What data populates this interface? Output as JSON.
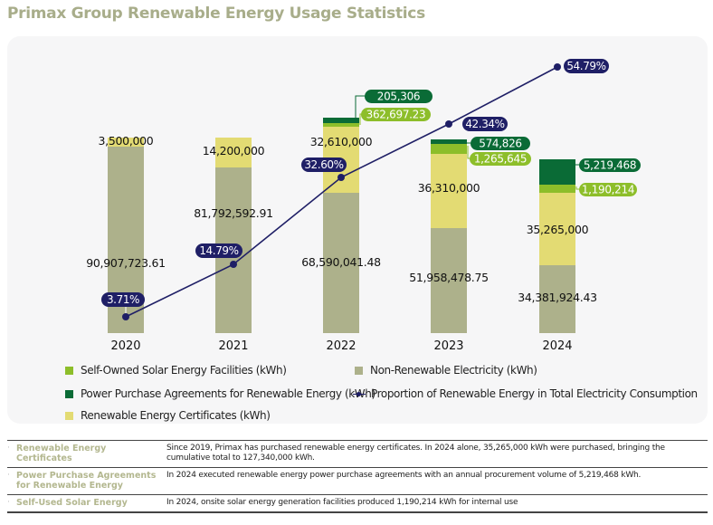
{
  "title": "Primax Group Renewable Energy Usage Statistics",
  "colors": {
    "self_owned_solar": "#8dbe2a",
    "ppa": "#0a6b36",
    "rec": "#e3db73",
    "non_renewable": "#adb18b",
    "proportion_line": "#1f1f66",
    "title": "#a8ad8a"
  },
  "chart_data": {
    "type": "bar",
    "stacked": true,
    "title": "Primax Group Renewable Energy Usage Statistics",
    "xlabel": "",
    "ylabel": "",
    "categories": [
      "2020",
      "2021",
      "2022",
      "2023",
      "2024"
    ],
    "series": [
      {
        "name": "Non-Renewable Electricity (kWh)",
        "key": "non_renewable",
        "values": [
          90907723.61,
          81792592.91,
          68590041.48,
          51958478.75,
          34381924.43
        ],
        "labels": [
          "90,907,723.61",
          "81,792,592.91",
          "68,590,041.48",
          "51,958,478.75",
          "34,381,924.43"
        ]
      },
      {
        "name": "Renewable Energy Certificates (kWh)",
        "key": "rec",
        "values": [
          3500000,
          14200000,
          32610000,
          36310000,
          35265000
        ],
        "labels": [
          "3,500,000",
          "14,200,000",
          "32,610,000",
          "36,310,000",
          "35,265,000"
        ]
      },
      {
        "name": "Self-Owned Solar Energy Facilities (kWh)",
        "key": "self_owned_solar",
        "values": [
          0,
          0,
          362697.23,
          1265645,
          1190214
        ],
        "labels": [
          "",
          "",
          "362,697.23",
          "1,265,645",
          "1,190,214"
        ]
      },
      {
        "name": "Power Purchase Agreements for Renewable Energy (kWh)",
        "key": "ppa",
        "values": [
          0,
          0,
          205306,
          574826,
          5219468
        ],
        "labels": [
          "",
          "",
          "205,306",
          "574,826",
          "5,219,468"
        ]
      }
    ],
    "line_series": {
      "name": "Proportion of Renewable Energy in Total Electricity Consumption",
      "unit": "%",
      "values": [
        3.71,
        14.79,
        32.6,
        42.34,
        54.79
      ],
      "labels": [
        "3.71%",
        "14.79%",
        "32.60%",
        "42.34%",
        "54.79%"
      ]
    },
    "legend": {
      "placement": "bottom",
      "entries": [
        {
          "label": "Self-Owned Solar Energy Facilities (kWh)",
          "key": "self_owned_solar",
          "kind": "square"
        },
        {
          "label": "Non-Renewable Electricity (kWh)",
          "key": "non_renewable",
          "kind": "square"
        },
        {
          "label": "Power Purchase Agreements for Renewable Energy (kWh)",
          "key": "ppa",
          "kind": "square"
        },
        {
          "label": "Proportion of Renewable Energy in Total Electricity Consumption",
          "key": "proportion_line",
          "kind": "line"
        },
        {
          "label": "Renewable Energy Certificates (kWh)",
          "key": "rec",
          "kind": "square"
        }
      ]
    },
    "grid": false
  },
  "notes": [
    {
      "label": "Renewable Energy Certificates",
      "text": "Since 2019, Primax has purchased renewable energy certificates. In 2024 alone, 35,265,000 kWh were purchased, bringing the cumulative total to 127,340,000 kWh."
    },
    {
      "label": "Power Purchase Agreements for Renewable Energy",
      "text": "In 2024 executed renewable energy power purchase agreements with an annual procurement volume of 5,219,468 kWh."
    },
    {
      "label": "Self-Used Solar Energy",
      "text": "In 2024, onsite solar energy generation facilities produced 1,190,214 kWh for internal use"
    }
  ]
}
